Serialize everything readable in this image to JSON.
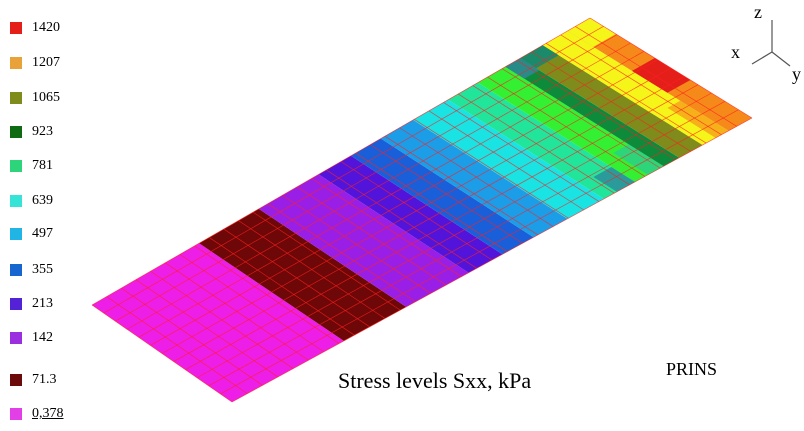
{
  "legend": [
    {
      "label": "1420",
      "color": "#e41f1a"
    },
    {
      "label": "1207",
      "color": "#e9a13a"
    },
    {
      "label": "1065",
      "color": "#7f8b1a"
    },
    {
      "label": "923",
      "color": "#0f6a14"
    },
    {
      "label": "781",
      "color": "#2ed47a"
    },
    {
      "label": "639",
      "color": "#36e3d7"
    },
    {
      "label": "497",
      "color": "#21b5e6"
    },
    {
      "label": "355",
      "color": "#1766cf"
    },
    {
      "label": "213",
      "color": "#5422d6"
    },
    {
      "label": "142",
      "color": "#9a2fe0"
    },
    {
      "label": "71.3",
      "color": "#6a0a0a"
    },
    {
      "label": "0,378",
      "color": "#e33fe6"
    }
  ],
  "caption": "Stress levels Sxx, kPa",
  "program_label": "PRINS",
  "axes": {
    "x": "x",
    "y": "y",
    "z": "z"
  },
  "grid_color": "#ff2020",
  "plate_bands": [
    {
      "name": "magenta-band",
      "color": "#ee1ee9"
    },
    {
      "name": "dark-red-band",
      "color": "#6e0707"
    },
    {
      "name": "violet-band",
      "color": "#9a1fe6"
    },
    {
      "name": "indigo-band",
      "color": "#5214da"
    },
    {
      "name": "blue-band",
      "color": "#1a5fda"
    },
    {
      "name": "sky-blue-band",
      "color": "#1c9de8"
    },
    {
      "name": "cyan-band",
      "color": "#19e3e3"
    },
    {
      "name": "aqua-green-band",
      "color": "#22e59c"
    },
    {
      "name": "green-band",
      "color": "#33f033"
    },
    {
      "name": "dark-green-band",
      "color": "#0d8a3a"
    },
    {
      "name": "olive-band",
      "color": "#7f8b1a"
    },
    {
      "name": "yellow-band",
      "color": "#f5f51a"
    },
    {
      "name": "orange-band",
      "color": "#f58a1a"
    }
  ]
}
